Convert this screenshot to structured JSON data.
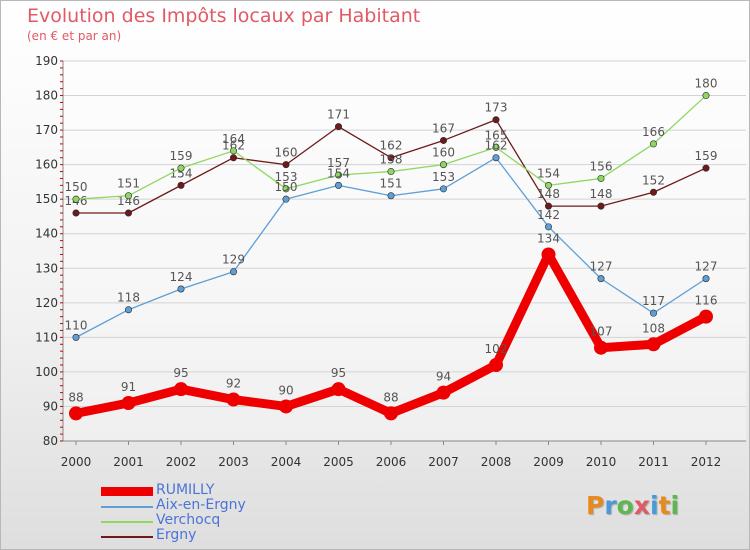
{
  "header": {
    "title": "Evolution des Impôts locaux par Habitant",
    "subtitle": "(en € et par an)"
  },
  "logo": {
    "text": "Proxiti",
    "letters": [
      "P",
      "r",
      "o",
      "x",
      "i",
      "t",
      "i"
    ]
  },
  "chart_data": {
    "type": "line",
    "title": "Evolution des Impôts locaux par Habitant",
    "subtitle": "(en € et par an)",
    "xlabel": "",
    "ylabel": "",
    "ylim": [
      80,
      190
    ],
    "yticks": [
      80,
      90,
      100,
      110,
      120,
      130,
      140,
      150,
      160,
      170,
      180,
      190
    ],
    "categories": [
      "2000",
      "2001",
      "2002",
      "2003",
      "2004",
      "2005",
      "2006",
      "2007",
      "2008",
      "2009",
      "2010",
      "2011",
      "2012"
    ],
    "legend_position": "bottom-left",
    "series": [
      {
        "name": "Ergny",
        "color": "#6e1a1a",
        "values": [
          146,
          146,
          154,
          162,
          160,
          171,
          162,
          167,
          173,
          148,
          148,
          152,
          159
        ]
      },
      {
        "name": "Verchocq",
        "color": "#8ed862",
        "values": [
          150,
          151,
          159,
          164,
          153,
          157,
          158,
          160,
          165,
          154,
          156,
          166,
          180
        ]
      },
      {
        "name": "Aix-en-Ergny",
        "color": "#5f9fd6",
        "values": [
          110,
          118,
          124,
          129,
          150,
          154,
          151,
          153,
          162,
          142,
          127,
          117,
          127
        ]
      },
      {
        "name": "RUMILLY",
        "color": "#ee0000",
        "values": [
          88,
          91,
          95,
          92,
          90,
          95,
          88,
          94,
          102,
          134,
          107,
          108,
          116
        ]
      }
    ]
  }
}
